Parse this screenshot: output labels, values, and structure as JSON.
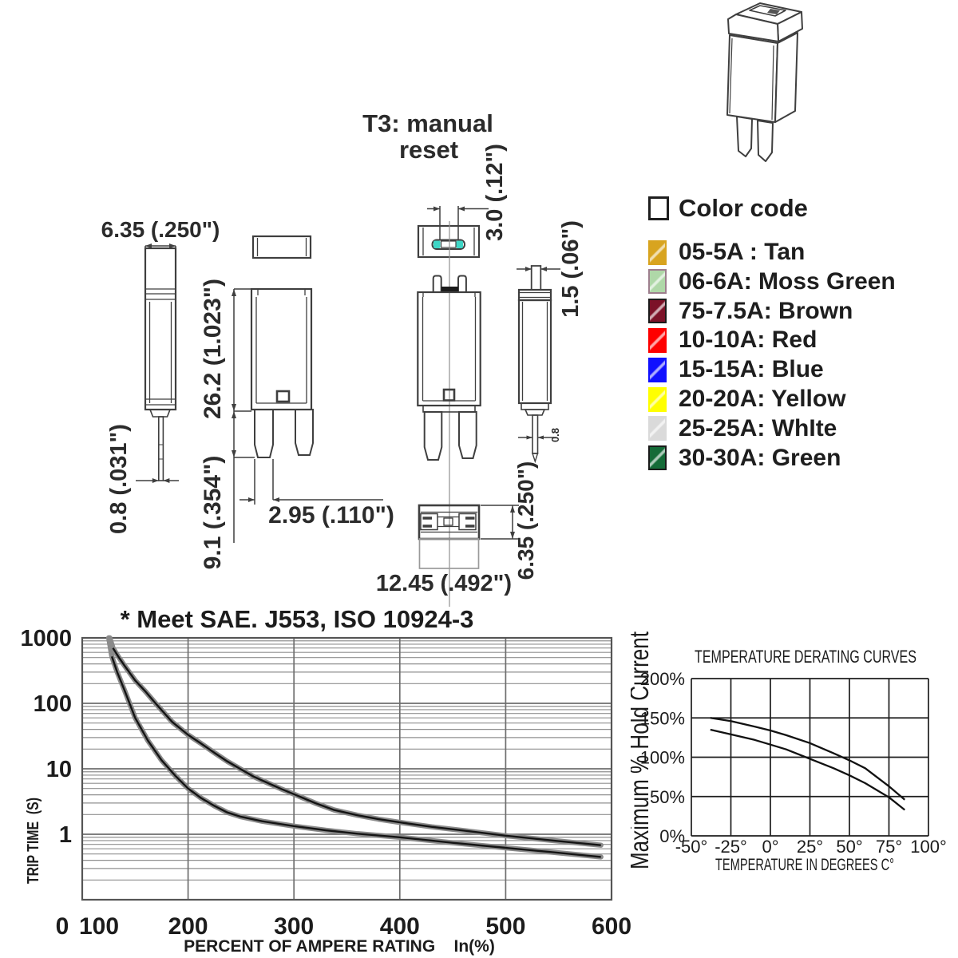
{
  "drawing": {
    "part_label_line1": "T3: manual",
    "part_label_line2": "reset",
    "dims": {
      "width_top": "6.35 (.250\")",
      "pin_width_left": "0.8 (.031\")",
      "body_height": "26.2 (1.023\")",
      "leg_length": "9.1 (.354\")",
      "leg_width": "2.95 (.110\")",
      "slot_width": "3.0 (.12\")",
      "button_width": "1.5 (.06\")",
      "pin_width_right": "0.8",
      "bottom_width": "12.45 (.492\")",
      "bottom_depth": "6.35 (.250\")"
    },
    "slot_highlight_color": "#3ED6C6"
  },
  "legend": {
    "header": "Color code",
    "items": [
      {
        "label": "05-5A : Tan",
        "color": "#D8A41F",
        "border": "#D8A41F"
      },
      {
        "label": "06-6A: Moss Green",
        "color": "#AFD8A8",
        "border": "#9E7F8E"
      },
      {
        "label": "75-7.5A: Brown",
        "color": "#7C1228",
        "border": "#1a1a1a"
      },
      {
        "label": "10-10A: Red",
        "color": "#FE0000",
        "border": "#FE0000"
      },
      {
        "label": "15-15A: Blue",
        "color": "#1010FF",
        "border": "#1010FF"
      },
      {
        "label": "20-20A: Yellow",
        "color": "#FFFF00",
        "border": "#FFFF00"
      },
      {
        "label": "25-25A: WhIte",
        "color": "#DADADA",
        "border": "#DADADA"
      },
      {
        "label": "30-30A: Green",
        "color": "#156B38",
        "border": "#1a1a1a"
      }
    ]
  },
  "chart_data": [
    {
      "type": "line",
      "title": "* Meet SAE. J553, ISO 10924-3",
      "xlabel": "PERCENT OF AMPERE RATING    In(%)",
      "ylabel": "TRIP TIME  (S)",
      "x_ticks": [
        0,
        100,
        200,
        300,
        400,
        500,
        600
      ],
      "y_ticks": [
        1000,
        100,
        10,
        1
      ],
      "xlim": [
        100,
        600
      ],
      "ylim_log": [
        0.1,
        1000
      ],
      "grid": true,
      "series": [
        {
          "name": "maximum trip time",
          "x": [
            126,
            129,
            134,
            140,
            150,
            160,
            170,
            185,
            200,
            212,
            225,
            237,
            250,
            262,
            275,
            287,
            300,
            320,
            338,
            360,
            380,
            400,
            430,
            460,
            500,
            545,
            590
          ],
          "y": [
            1000,
            700,
            520,
            376,
            224,
            150,
            97,
            52,
            33,
            24.5,
            17.5,
            13,
            9.8,
            7.6,
            6.1,
            5.0,
            4.1,
            3.0,
            2.35,
            1.95,
            1.7,
            1.52,
            1.3,
            1.14,
            0.95,
            0.8,
            0.68
          ]
        },
        {
          "name": "minimum trip time",
          "x": [
            125,
            128,
            133,
            140,
            150,
            162,
            175,
            188,
            200,
            212,
            225,
            237,
            250,
            270,
            300,
            330,
            360,
            400,
            450,
            500,
            545,
            590
          ],
          "y": [
            1000,
            520,
            300,
            158,
            60,
            27,
            13.5,
            7.8,
            5.0,
            3.6,
            2.7,
            2.15,
            1.85,
            1.58,
            1.33,
            1.15,
            1.02,
            0.9,
            0.74,
            0.62,
            0.53,
            0.45
          ]
        }
      ]
    },
    {
      "type": "line",
      "title": "TEMPERATURE DERATING CURVES",
      "xlabel": "TEMPERATURE IN DEGREES C°",
      "ylabel": "Maximum % Hold Current",
      "x_ticks": [
        -50,
        -25,
        0,
        25,
        50,
        75,
        100
      ],
      "x_tick_labels": [
        "-50°",
        "-25°",
        "0°",
        "25°",
        "50°",
        "75°",
        "100°"
      ],
      "y_ticks": [
        200,
        150,
        100,
        50,
        0
      ],
      "y_tick_labels": [
        "200%",
        "150%",
        "100%",
        "50%",
        "0%"
      ],
      "xlim": [
        -50,
        100
      ],
      "ylim": [
        0,
        200
      ],
      "grid": true,
      "series": [
        {
          "name": "upper derating curve",
          "x": [
            -38,
            -25,
            -10,
            0,
            10,
            25,
            40,
            50,
            60,
            75,
            85
          ],
          "y": [
            150,
            146,
            139,
            134,
            128,
            118,
            105,
            96,
            86,
            63,
            46
          ]
        },
        {
          "name": "lower derating curve",
          "x": [
            -38,
            -25,
            -10,
            0,
            10,
            25,
            40,
            50,
            60,
            75,
            85
          ],
          "y": [
            135,
            129,
            122,
            116,
            110,
            98,
            86,
            77,
            67,
            49,
            33
          ]
        }
      ]
    }
  ]
}
